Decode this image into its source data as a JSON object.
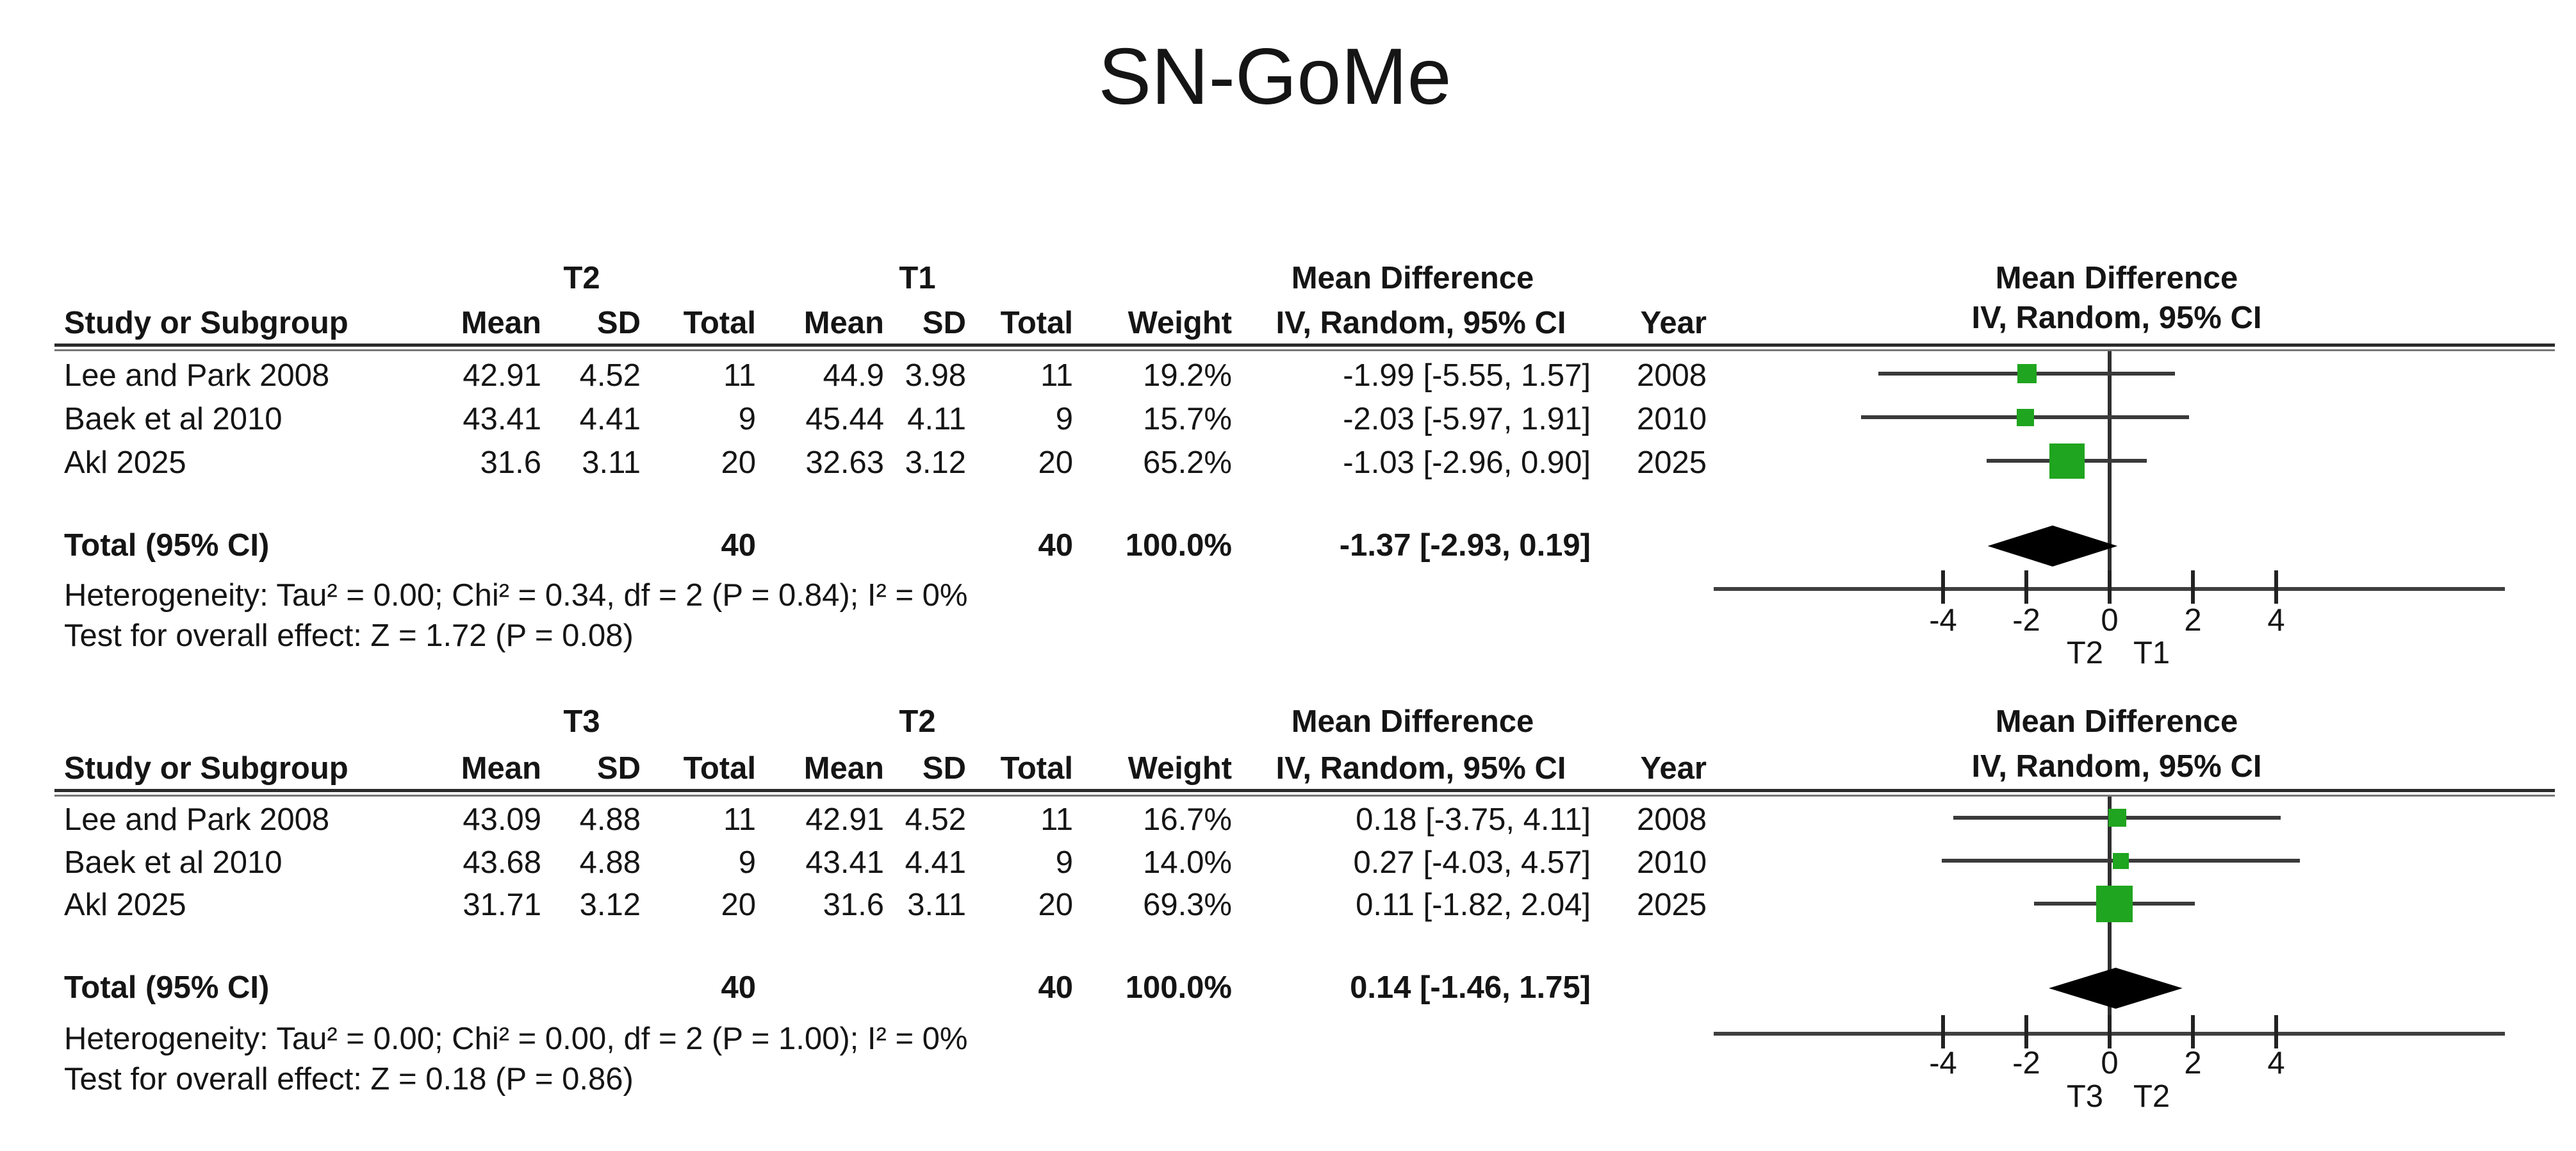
{
  "title": "SN-GoMe",
  "colors": {
    "marker_green": "#1fa51f",
    "line_dark": "#3a3a3a",
    "diamond_black": "#000000"
  },
  "panels": [
    {
      "group1_label": "T2",
      "group2_label": "T1",
      "effect_header": "Mean Difference",
      "effect_subheader": "IV, Random, 95% CI",
      "columns": {
        "study": "Study or Subgroup",
        "mean": "Mean",
        "sd": "SD",
        "total": "Total",
        "weight": "Weight",
        "ci": "IV, Random, 95% CI",
        "year": "Year"
      },
      "rows": [
        {
          "study": "Lee and Park 2008",
          "mean1": "42.91",
          "sd1": "4.52",
          "total1": "11",
          "mean2": "44.9",
          "sd2": "3.98",
          "total2": "11",
          "weight": "19.2%",
          "ci": "-1.99 [-5.55, 1.57]",
          "year": "2008"
        },
        {
          "study": "Baek et al 2010",
          "mean1": "43.41",
          "sd1": "4.41",
          "total1": "9",
          "mean2": "45.44",
          "sd2": "4.11",
          "total2": "9",
          "weight": "15.7%",
          "ci": "-2.03 [-5.97, 1.91]",
          "year": "2010"
        },
        {
          "study": "Akl 2025",
          "mean1": "31.6",
          "sd1": "3.11",
          "total1": "20",
          "mean2": "32.63",
          "sd2": "3.12",
          "total2": "20",
          "weight": "65.2%",
          "ci": "-1.03 [-2.96, 0.90]",
          "year": "2025"
        }
      ],
      "total": {
        "label": "Total (95% CI)",
        "total1": "40",
        "total2": "40",
        "weight": "100.0%",
        "ci": "-1.37 [-2.93, 0.19]"
      },
      "heterogeneity": "Heterogeneity: Tau² = 0.00; Chi² = 0.34, df = 2 (P = 0.84); I² = 0%",
      "overall_test": "Test for overall effect: Z = 1.72 (P = 0.08)",
      "axis_ticks": [
        "-4",
        "-2",
        "0",
        "2",
        "4"
      ],
      "favours_left": "T2",
      "favours_right": "T1"
    },
    {
      "group1_label": "T3",
      "group2_label": "T2",
      "effect_header": "Mean Difference",
      "effect_subheader": "IV, Random, 95% CI",
      "columns": {
        "study": "Study or Subgroup",
        "mean": "Mean",
        "sd": "SD",
        "total": "Total",
        "weight": "Weight",
        "ci": "IV, Random, 95% CI",
        "year": "Year"
      },
      "rows": [
        {
          "study": "Lee and Park 2008",
          "mean1": "43.09",
          "sd1": "4.88",
          "total1": "11",
          "mean2": "42.91",
          "sd2": "4.52",
          "total2": "11",
          "weight": "16.7%",
          "ci": "0.18 [-3.75, 4.11]",
          "year": "2008"
        },
        {
          "study": "Baek et al 2010",
          "mean1": "43.68",
          "sd1": "4.88",
          "total1": "9",
          "mean2": "43.41",
          "sd2": "4.41",
          "total2": "9",
          "weight": "14.0%",
          "ci": "0.27 [-4.03, 4.57]",
          "year": "2010"
        },
        {
          "study": "Akl 2025",
          "mean1": "31.71",
          "sd1": "3.12",
          "total1": "20",
          "mean2": "31.6",
          "sd2": "3.11",
          "total2": "20",
          "weight": "69.3%",
          "ci": "0.11 [-1.82, 2.04]",
          "year": "2025"
        }
      ],
      "total": {
        "label": "Total (95% CI)",
        "total1": "40",
        "total2": "40",
        "weight": "100.0%",
        "ci": "0.14 [-1.46, 1.75]"
      },
      "heterogeneity": "Heterogeneity: Tau² = 0.00; Chi² = 0.00, df = 2 (P = 1.00); I² = 0%",
      "overall_test": "Test for overall effect: Z = 0.18 (P = 0.86)",
      "axis_ticks": [
        "-4",
        "-2",
        "0",
        "2",
        "4"
      ],
      "favours_left": "T3",
      "favours_right": "T2"
    }
  ],
  "chart_data": [
    {
      "type": "forest",
      "title": "SN-GoMe — T2 vs T1 mean difference",
      "effect_measure": "Mean Difference, IV, Random, 95% CI",
      "x_ticks": [
        -4,
        -2,
        0,
        2,
        4
      ],
      "x_axis_range": [
        -9.5,
        9.5
      ],
      "zero_line": 0,
      "favours_left": "T2",
      "favours_right": "T1",
      "studies": [
        {
          "name": "Lee and Park 2008",
          "md": -1.99,
          "ci": [
            -5.55,
            1.57
          ],
          "weight_pct": 19.2,
          "year": 2008
        },
        {
          "name": "Baek et al 2010",
          "md": -2.03,
          "ci": [
            -5.97,
            1.91
          ],
          "weight_pct": 15.7,
          "year": 2010
        },
        {
          "name": "Akl 2025",
          "md": -1.03,
          "ci": [
            -2.96,
            0.9
          ],
          "weight_pct": 65.2,
          "year": 2025
        }
      ],
      "total": {
        "md": -1.37,
        "ci": [
          -2.93,
          0.19
        ],
        "weight_pct": 100.0
      },
      "heterogeneity": {
        "tau2": 0.0,
        "chi2": 0.34,
        "df": 2,
        "p": 0.84,
        "i2_pct": 0
      },
      "overall_effect": {
        "z": 1.72,
        "p": 0.08
      }
    },
    {
      "type": "forest",
      "title": "SN-GoMe — T3 vs T2 mean difference",
      "effect_measure": "Mean Difference, IV, Random, 95% CI",
      "x_ticks": [
        -4,
        -2,
        0,
        2,
        4
      ],
      "x_axis_range": [
        -9.5,
        9.5
      ],
      "zero_line": 0,
      "favours_left": "T3",
      "favours_right": "T2",
      "studies": [
        {
          "name": "Lee and Park 2008",
          "md": 0.18,
          "ci": [
            -3.75,
            4.11
          ],
          "weight_pct": 16.7,
          "year": 2008
        },
        {
          "name": "Baek et al 2010",
          "md": 0.27,
          "ci": [
            -4.03,
            4.57
          ],
          "weight_pct": 14.0,
          "year": 2010
        },
        {
          "name": "Akl 2025",
          "md": 0.11,
          "ci": [
            -1.82,
            2.04
          ],
          "weight_pct": 69.3,
          "year": 2025
        }
      ],
      "total": {
        "md": 0.14,
        "ci": [
          -1.46,
          1.75
        ],
        "weight_pct": 100.0
      },
      "heterogeneity": {
        "tau2": 0.0,
        "chi2": 0.0,
        "df": 2,
        "p": 1.0,
        "i2_pct": 0
      },
      "overall_effect": {
        "z": 0.18,
        "p": 0.86
      }
    }
  ]
}
